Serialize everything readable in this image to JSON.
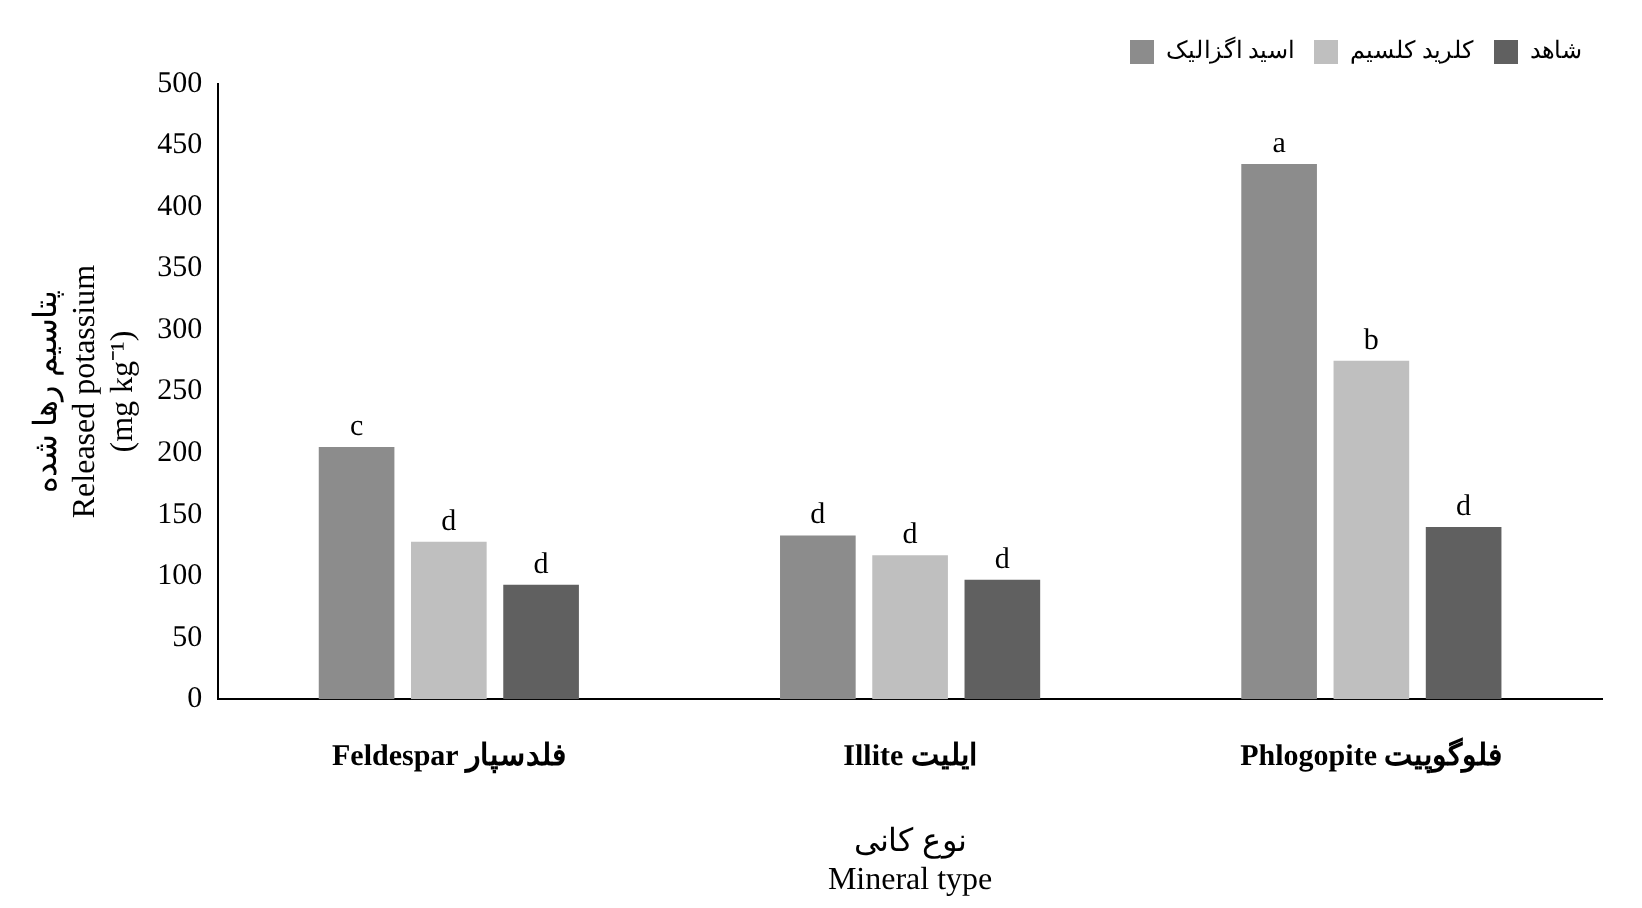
{
  "chart_data": {
    "type": "bar",
    "categories": [
      "Feldespar فلدسپار",
      "Illite ایلیت",
      "Phlogopite فلوگوپیت"
    ],
    "series": [
      {
        "name": "اسید اگزالیک",
        "color": "#8c8c8c",
        "values": [
          205,
          133,
          435
        ],
        "value_labels": [
          "c",
          "d",
          "a"
        ]
      },
      {
        "name": "کلرید کلسیم",
        "color": "#bfbfbf",
        "values": [
          128,
          117,
          275
        ],
        "value_labels": [
          "d",
          "d",
          "b"
        ]
      },
      {
        "name": "شاهد",
        "color": "#606060",
        "values": [
          93,
          97,
          140
        ],
        "value_labels": [
          "d",
          "d",
          "d"
        ]
      }
    ],
    "xlabel": "نوع کانی\nMineral type",
    "ylabel": "پتاسیم رها شده\nReleased potassium\n(mg kg⁻¹)",
    "ylim": [
      0,
      500
    ],
    "yticks": [
      0,
      50,
      100,
      150,
      200,
      250,
      300,
      350,
      400,
      450,
      500
    ],
    "grid": false,
    "legend": "top right"
  }
}
